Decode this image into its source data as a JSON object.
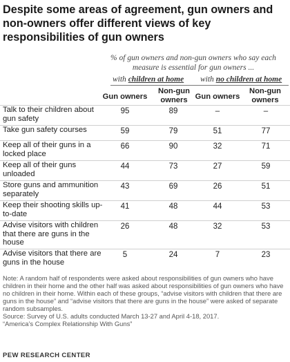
{
  "title": "Despite some areas of agreement, gun owners and non-owners offer different views of key responsibilities of gun owners",
  "subtitle": "% of gun owners and non-gun owners who say each measure is essential for gun owners ...",
  "groups": {
    "with": {
      "prefix": "with ",
      "emph": "children at home"
    },
    "without": {
      "prefix": "with ",
      "emph": "no children at home"
    }
  },
  "columns": [
    "Gun owners",
    "Non-gun owners",
    "Gun owners",
    "Non-gun owners"
  ],
  "chart_data": {
    "type": "table",
    "title": "Despite some areas of agreement, gun owners and non-owners offer different views of key responsibilities of gun owners",
    "rows": [
      {
        "label": "Talk to their children about gun safety",
        "values": [
          "95",
          "89",
          "–",
          "–"
        ]
      },
      {
        "label": "Take gun safety courses",
        "values": [
          "59",
          "79",
          "51",
          "77"
        ]
      },
      {
        "label": "Keep all of their guns in a locked place",
        "values": [
          "66",
          "90",
          "32",
          "71"
        ]
      },
      {
        "label": "Keep all of their guns unloaded",
        "values": [
          "44",
          "73",
          "27",
          "59"
        ]
      },
      {
        "label": "Store guns and ammunition separately",
        "values": [
          "43",
          "69",
          "26",
          "51"
        ]
      },
      {
        "label": "Keep their shooting skills up-to-date",
        "values": [
          "41",
          "48",
          "44",
          "53"
        ]
      },
      {
        "label": "Advise visitors with children that there are guns in the house",
        "values": [
          "26",
          "48",
          "32",
          "53"
        ]
      },
      {
        "label": "Advise visitors that there are guns in the house",
        "values": [
          "5",
          "24",
          "7",
          "23"
        ]
      }
    ]
  },
  "note": "Note: A random half of respondents were asked about responsibilities of gun owners who have children in their home and the other half was asked about responsibilities of gun owners who have no children in their home. Within each of these groups, “advise visitors with children that there are guns in the house” and “advise visitors that there are guns in the house” were asked of separate random subsamples.",
  "source": "Source: Survey of U.S. adults conducted March 13-27 and April 4-18, 2017.",
  "report": "“America’s Complex Relationship With Guns”",
  "logo": "PEW RESEARCH CENTER"
}
